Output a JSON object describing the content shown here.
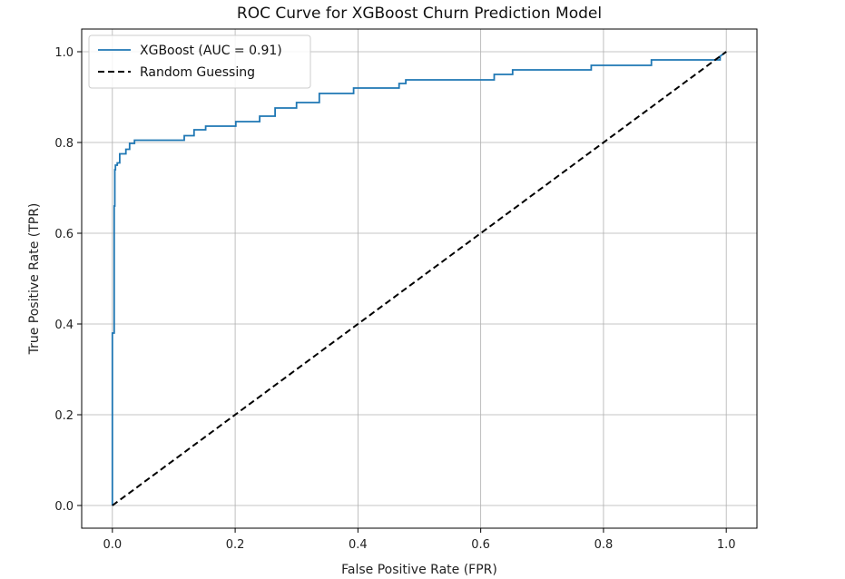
{
  "chart_data": {
    "type": "line",
    "title": "ROC Curve for XGBoost Churn Prediction Model",
    "xlabel": "False Positive Rate (FPR)",
    "ylabel": "True Positive Rate (TPR)",
    "xlim": [
      -0.05,
      1.05
    ],
    "ylim": [
      -0.05,
      1.05
    ],
    "xticks": [
      0.0,
      0.2,
      0.4,
      0.6,
      0.8,
      1.0
    ],
    "yticks": [
      0.0,
      0.2,
      0.4,
      0.6,
      0.8,
      1.0
    ],
    "xtick_labels": [
      "0.0",
      "0.2",
      "0.4",
      "0.6",
      "0.8",
      "1.0"
    ],
    "ytick_labels": [
      "0.0",
      "0.2",
      "0.4",
      "0.6",
      "0.8",
      "1.0"
    ],
    "grid": true,
    "legend_position": "top-left",
    "series": [
      {
        "name": "XGBoost (AUC = 0.91)",
        "color": "#1f77b4",
        "style": "solid",
        "x": [
          0.0,
          0.0,
          0.003,
          0.003,
          0.004,
          0.004,
          0.005,
          0.005,
          0.008,
          0.008,
          0.012,
          0.012,
          0.022,
          0.022,
          0.028,
          0.028,
          0.036,
          0.036,
          0.117,
          0.117,
          0.133,
          0.133,
          0.152,
          0.152,
          0.201,
          0.201,
          0.24,
          0.24,
          0.265,
          0.265,
          0.3,
          0.3,
          0.337,
          0.337,
          0.393,
          0.393,
          0.467,
          0.467,
          0.478,
          0.478,
          0.622,
          0.622,
          0.652,
          0.652,
          0.78,
          0.78,
          0.878,
          0.878,
          0.99,
          0.99,
          1.0
        ],
        "y": [
          0.0,
          0.38,
          0.38,
          0.66,
          0.66,
          0.74,
          0.74,
          0.75,
          0.75,
          0.755,
          0.755,
          0.775,
          0.775,
          0.785,
          0.785,
          0.798,
          0.798,
          0.805,
          0.805,
          0.815,
          0.815,
          0.828,
          0.828,
          0.836,
          0.836,
          0.846,
          0.846,
          0.858,
          0.858,
          0.876,
          0.876,
          0.888,
          0.888,
          0.908,
          0.908,
          0.92,
          0.92,
          0.93,
          0.93,
          0.938,
          0.938,
          0.95,
          0.95,
          0.96,
          0.96,
          0.97,
          0.97,
          0.982,
          0.982,
          0.99,
          1.0
        ]
      },
      {
        "name": "Random Guessing",
        "color": "#000000",
        "style": "dashed",
        "x": [
          0.0,
          1.0
        ],
        "y": [
          0.0,
          1.0
        ]
      }
    ]
  }
}
